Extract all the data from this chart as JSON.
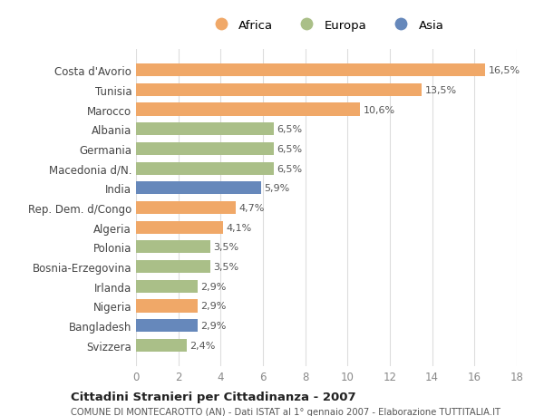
{
  "categories": [
    "Costa d'Avorio",
    "Tunisia",
    "Marocco",
    "Albania",
    "Germania",
    "Macedonia d/N.",
    "India",
    "Rep. Dem. d/Congo",
    "Algeria",
    "Polonia",
    "Bosnia-Erzegovina",
    "Irlanda",
    "Nigeria",
    "Bangladesh",
    "Svizzera"
  ],
  "values": [
    16.5,
    13.5,
    10.6,
    6.5,
    6.5,
    6.5,
    5.9,
    4.7,
    4.1,
    3.5,
    3.5,
    2.9,
    2.9,
    2.9,
    2.4
  ],
  "labels": [
    "16,5%",
    "13,5%",
    "10,6%",
    "6,5%",
    "6,5%",
    "6,5%",
    "5,9%",
    "4,7%",
    "4,1%",
    "3,5%",
    "3,5%",
    "2,9%",
    "2,9%",
    "2,9%",
    "2,4%"
  ],
  "continents": [
    "Africa",
    "Africa",
    "Africa",
    "Europa",
    "Europa",
    "Europa",
    "Asia",
    "Africa",
    "Africa",
    "Europa",
    "Europa",
    "Europa",
    "Africa",
    "Asia",
    "Europa"
  ],
  "colors": {
    "Africa": "#F0A868",
    "Europa": "#AABF88",
    "Asia": "#6688BB"
  },
  "xlim": [
    0,
    18
  ],
  "xticks": [
    0,
    2,
    4,
    6,
    8,
    10,
    12,
    14,
    16,
    18
  ],
  "title": "Cittadini Stranieri per Cittadinanza - 2007",
  "subtitle": "COMUNE DI MONTECAROTTO (AN) - Dati ISTAT al 1° gennaio 2007 - Elaborazione TUTTITALIA.IT",
  "background_color": "#FFFFFF",
  "grid_color": "#DDDDDD"
}
